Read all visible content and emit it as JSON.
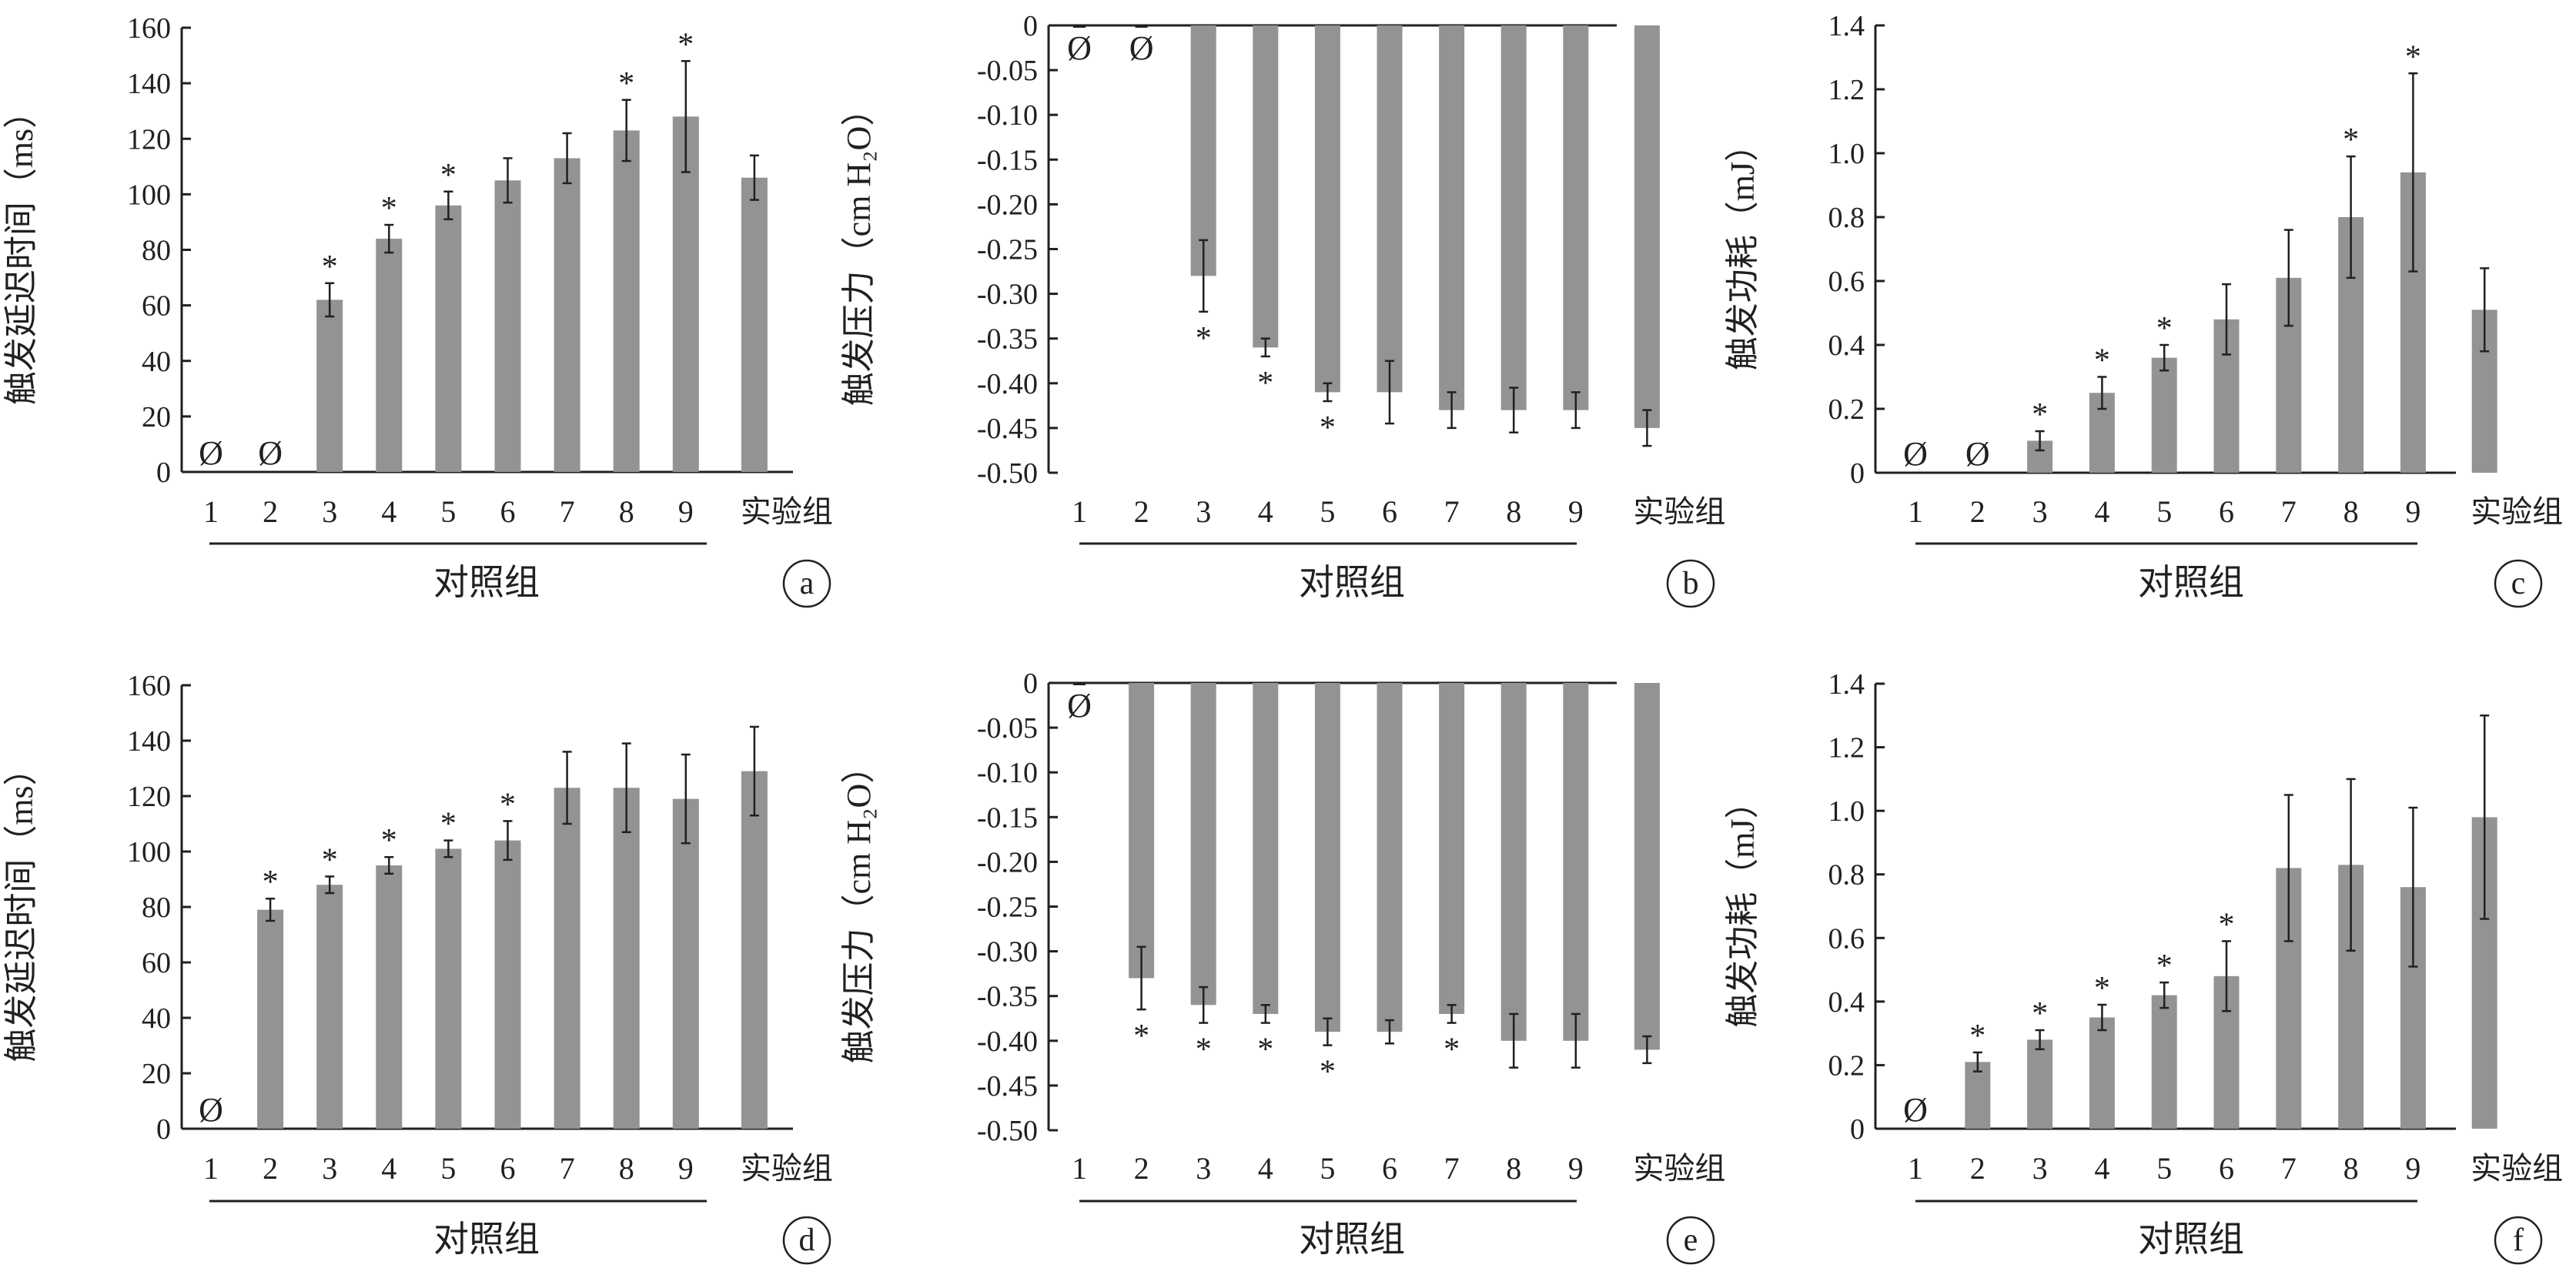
{
  "figure": {
    "group_label": "对照组",
    "experimental_label": "实验组",
    "null_symbol": "Ø",
    "significance_symbol": "*"
  },
  "chart_data": [
    {
      "panel": "a",
      "type": "bar",
      "categories": [
        "1",
        "2",
        "3",
        "4",
        "5",
        "6",
        "7",
        "8",
        "9",
        "实验组"
      ],
      "values": [
        0,
        0,
        62,
        84,
        96,
        105,
        113,
        123,
        128,
        106
      ],
      "errors": [
        0,
        0,
        6,
        5,
        5,
        8,
        9,
        11,
        20,
        8
      ],
      "significant": [
        false,
        false,
        true,
        true,
        true,
        false,
        false,
        true,
        true,
        false
      ],
      "null_value": [
        true,
        true,
        false,
        false,
        false,
        false,
        false,
        false,
        false,
        false
      ],
      "ylabel": "触发延迟时间（ms）",
      "ylim": [
        0,
        160
      ],
      "yticks": [
        "0",
        "20",
        "40",
        "60",
        "80",
        "100",
        "120",
        "140",
        "160"
      ],
      "xlabel": "对照组",
      "bar_color": "#939393"
    },
    {
      "panel": "b",
      "type": "bar",
      "categories": [
        "1",
        "2",
        "3",
        "4",
        "5",
        "6",
        "7",
        "8",
        "9",
        "实验组"
      ],
      "values": [
        0,
        0,
        -0.28,
        -0.36,
        -0.41,
        -0.41,
        -0.43,
        -0.43,
        -0.43,
        -0.45
      ],
      "errors": [
        0,
        0,
        0.04,
        0.01,
        0.01,
        0.035,
        0.02,
        0.025,
        0.02,
        0.02
      ],
      "significant": [
        false,
        false,
        true,
        true,
        true,
        false,
        false,
        false,
        false,
        false
      ],
      "null_value": [
        true,
        true,
        false,
        false,
        false,
        false,
        false,
        false,
        false,
        false
      ],
      "ylabel": "触发压力（cm H₂O）",
      "ylim": [
        -0.5,
        0
      ],
      "yticks": [
        "0",
        "-0.05",
        "-0.10",
        "-0.15",
        "-0.20",
        "-0.25",
        "-0.30",
        "-0.35",
        "-0.40",
        "-0.45",
        "-0.50"
      ],
      "xlabel": "对照组",
      "bar_color": "#939393"
    },
    {
      "panel": "c",
      "type": "bar",
      "categories": [
        "1",
        "2",
        "3",
        "4",
        "5",
        "6",
        "7",
        "8",
        "9",
        "实验组"
      ],
      "values": [
        0,
        0,
        0.1,
        0.25,
        0.36,
        0.48,
        0.61,
        0.8,
        0.94,
        0.51
      ],
      "errors": [
        0,
        0,
        0.03,
        0.05,
        0.04,
        0.11,
        0.15,
        0.19,
        0.31,
        0.13
      ],
      "significant": [
        false,
        false,
        true,
        true,
        true,
        false,
        false,
        true,
        true,
        false
      ],
      "null_value": [
        true,
        true,
        false,
        false,
        false,
        false,
        false,
        false,
        false,
        false
      ],
      "ylabel": "触发功耗（mJ）",
      "ylim": [
        0,
        1.4
      ],
      "yticks": [
        "0",
        "0.2",
        "0.4",
        "0.6",
        "0.8",
        "1.0",
        "1.2",
        "1.4"
      ],
      "xlabel": "对照组",
      "bar_color": "#939393"
    },
    {
      "panel": "d",
      "type": "bar",
      "categories": [
        "1",
        "2",
        "3",
        "4",
        "5",
        "6",
        "7",
        "8",
        "9",
        "实验组"
      ],
      "values": [
        0,
        79,
        88,
        95,
        101,
        104,
        123,
        123,
        119,
        129
      ],
      "errors": [
        0,
        4,
        3,
        3,
        3,
        7,
        13,
        16,
        16,
        16
      ],
      "significant": [
        false,
        true,
        true,
        true,
        true,
        true,
        false,
        false,
        false,
        false
      ],
      "null_value": [
        true,
        false,
        false,
        false,
        false,
        false,
        false,
        false,
        false,
        false
      ],
      "ylabel": "触发延迟时间（ms）",
      "ylim": [
        0,
        160
      ],
      "yticks": [
        "0",
        "20",
        "40",
        "60",
        "80",
        "100",
        "120",
        "140",
        "160"
      ],
      "xlabel": "对照组",
      "bar_color": "#939393"
    },
    {
      "panel": "e",
      "type": "bar",
      "categories": [
        "1",
        "2",
        "3",
        "4",
        "5",
        "6",
        "7",
        "8",
        "9",
        "实验组"
      ],
      "values": [
        0,
        -0.33,
        -0.36,
        -0.37,
        -0.39,
        -0.39,
        -0.37,
        -0.4,
        -0.4,
        -0.41
      ],
      "errors": [
        0,
        0.035,
        0.02,
        0.01,
        0.015,
        0.013,
        0.01,
        0.03,
        0.03,
        0.015
      ],
      "significant": [
        false,
        true,
        true,
        true,
        true,
        false,
        true,
        false,
        false,
        false
      ],
      "null_value": [
        true,
        false,
        false,
        false,
        false,
        false,
        false,
        false,
        false,
        false
      ],
      "ylabel": "触发压力（cm H₂O）",
      "ylim": [
        -0.5,
        0
      ],
      "yticks": [
        "0",
        "-0.05",
        "-0.10",
        "-0.15",
        "-0.20",
        "-0.25",
        "-0.30",
        "-0.35",
        "-0.40",
        "-0.45",
        "-0.50"
      ],
      "xlabel": "对照组",
      "bar_color": "#939393"
    },
    {
      "panel": "f",
      "type": "bar",
      "categories": [
        "1",
        "2",
        "3",
        "4",
        "5",
        "6",
        "7",
        "8",
        "9",
        "实验组"
      ],
      "values": [
        0,
        0.21,
        0.28,
        0.35,
        0.42,
        0.48,
        0.82,
        0.83,
        0.76,
        0.98
      ],
      "errors": [
        0,
        0.03,
        0.03,
        0.04,
        0.04,
        0.11,
        0.23,
        0.27,
        0.25,
        0.32
      ],
      "significant": [
        false,
        true,
        true,
        true,
        true,
        true,
        false,
        false,
        false,
        false
      ],
      "null_value": [
        true,
        false,
        false,
        false,
        false,
        false,
        false,
        false,
        false,
        false
      ],
      "ylabel": "触发功耗（mJ）",
      "ylim": [
        0,
        1.4
      ],
      "yticks": [
        "0",
        "0.2",
        "0.4",
        "0.6",
        "0.8",
        "1.0",
        "1.2",
        "1.4"
      ],
      "xlabel": "对照组",
      "bar_color": "#939393"
    }
  ]
}
